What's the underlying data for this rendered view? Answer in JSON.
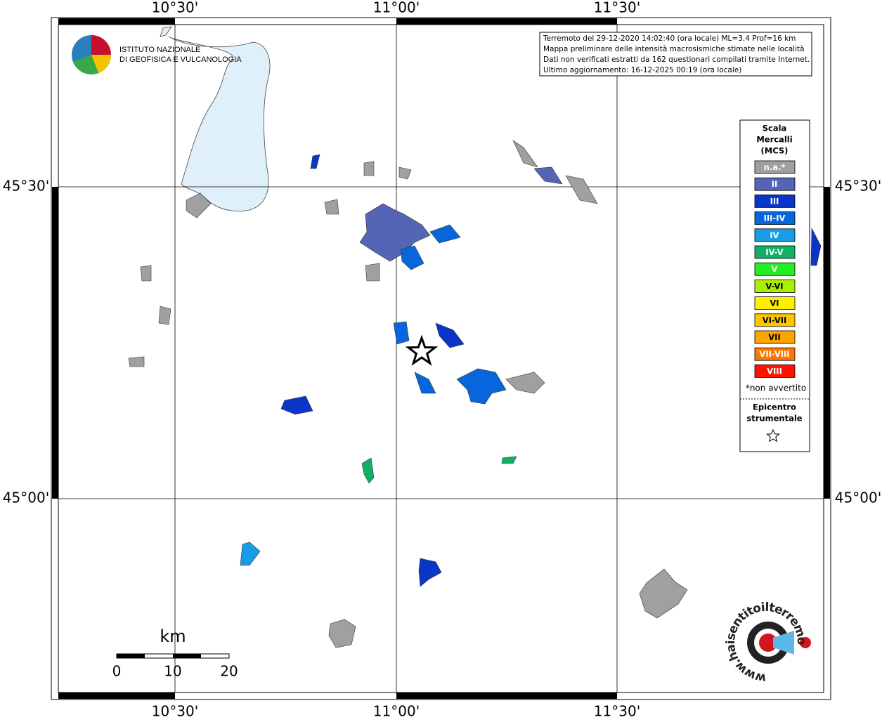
{
  "map": {
    "top_labels": [
      "10°30'",
      "11°00'",
      "11°30'"
    ],
    "bottom_labels": [
      "10°30'",
      "11°00'",
      "11°30'"
    ],
    "left_labels": [
      "45°30'",
      "45°00'"
    ],
    "right_labels": [
      "45°30'",
      "45°00'"
    ]
  },
  "logo": {
    "line1": "ISTITUTO NAZIONALE",
    "line2": "DI GEOFISICA E VULCANOLOGIA"
  },
  "info": [
    "Terremoto del 29-12-2020 14:02:40 (ora locale) ML=3.4 Prof=16 km",
    "Mappa preliminare delle intensità macrosismiche stimate nelle località",
    "Dati non verificati estratti da 162 questionari compilati tramite Internet.",
    "Ultimo aggiornamento: 16-12-2025 00:19 (ora locale)"
  ],
  "legend": {
    "title": [
      "Scala",
      "Mercalli",
      "(MCS)"
    ],
    "items": [
      {
        "label": "n.a.*",
        "color": "#a0a0a0"
      },
      {
        "label": "II",
        "color": "#5465b5"
      },
      {
        "label": "III",
        "color": "#0a35c8"
      },
      {
        "label": "III-IV",
        "color": "#0866dc"
      },
      {
        "label": "IV",
        "color": "#1a9be6"
      },
      {
        "label": "IV-V",
        "color": "#12b066"
      },
      {
        "label": "V",
        "color": "#22ee22"
      },
      {
        "label": "V-VI",
        "color": "#aaee00"
      },
      {
        "label": "VI",
        "color": "#ffee00"
      },
      {
        "label": "VI-VII",
        "color": "#ffc400"
      },
      {
        "label": "VII",
        "color": "#ffa500"
      },
      {
        "label": "VII-VIII",
        "color": "#ff7700"
      },
      {
        "label": "VIII",
        "color": "#ff1100"
      }
    ],
    "note": "*non avvertito",
    "epicenter": [
      "Epicentro",
      "strumentale"
    ]
  },
  "scale_bar": {
    "unit": "km",
    "ticks": [
      0,
      10,
      20
    ]
  },
  "site_logo": {
    "text": "www.haisentitoilterremoto.it"
  }
}
